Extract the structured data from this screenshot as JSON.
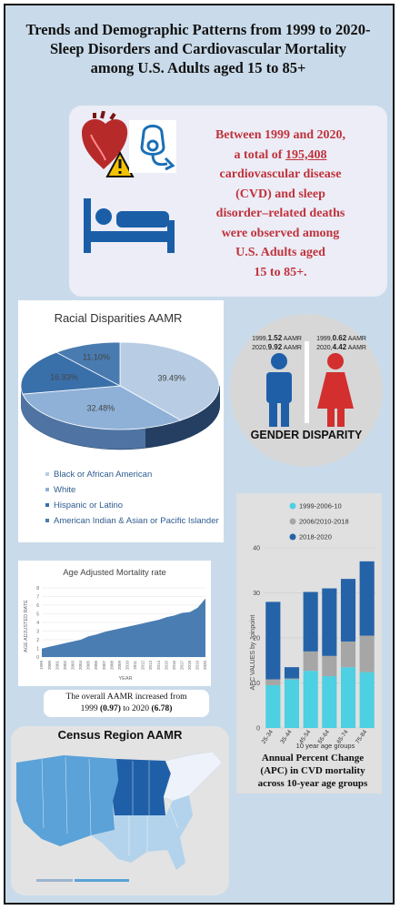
{
  "title_lines": [
    "Trends and Demographic Patterns from 1999 to 2020-",
    "Sleep Disorders and Cardiovascular Mortality",
    "among U.S. Adults aged 15 to 85+"
  ],
  "intro": {
    "line1": "Between 1999 and 2020,",
    "line2_pre": "a total of ",
    "line2_num": "195,408",
    "line3": "cardiovascular disease",
    "line4": "(CVD) and sleep",
    "line5": "disorder–related deaths",
    "line6": "were observed among",
    "line7": "U.S. Adults aged",
    "line8": "15 to 85+."
  },
  "race": {
    "title": "Racial Disparities AAMR",
    "labels": [
      "39.49%",
      "32.48%",
      "16.93%",
      "11.10%"
    ],
    "legend": [
      "Black or African American",
      "White",
      "Hispanic or Latino",
      "American Indian & Asian or Pacific Islander"
    ],
    "colors": [
      "#b8cde4",
      "#8fb1d8",
      "#3a70aa",
      "#4a7bb0"
    ]
  },
  "gender": {
    "title": "GENDER DISPARITY",
    "male": {
      "y1999": "1999,",
      "v1999": "1.52",
      "y2020": "2020,",
      "v2020": "9.92",
      "unit": "AAMR"
    },
    "female": {
      "y1999": "1999,",
      "v1999": "0.62",
      "y2020": "2020,",
      "v2020": "4.42",
      "unit": "AAMR"
    },
    "male_color": "#1f5fa8",
    "female_color": "#d32f2f"
  },
  "age": {
    "title": "Age Adjusted Mortality rate",
    "ylabel": "AGE ADJUSTED RATE",
    "xlabel": "YEAR",
    "caption_line1": "The overall AAMR increased from",
    "caption_pre": "1999 ",
    "caption_v1": "(0.97)",
    "caption_mid": " to 2020 ",
    "caption_v2": "(6.78)"
  },
  "chart_data": [
    {
      "type": "area",
      "title": "Age Adjusted Mortality rate",
      "xlabel": "YEAR",
      "ylabel": "AGE ADJUSTED RATE",
      "x": [
        1999,
        2000,
        2001,
        2002,
        2003,
        2004,
        2005,
        2006,
        2007,
        2008,
        2009,
        2010,
        2011,
        2012,
        2013,
        2014,
        2015,
        2016,
        2017,
        2018,
        2019,
        2020
      ],
      "values": [
        0.97,
        1.2,
        1.4,
        1.6,
        1.8,
        2.0,
        2.4,
        2.6,
        2.9,
        3.1,
        3.3,
        3.5,
        3.7,
        3.9,
        4.1,
        4.3,
        4.6,
        4.8,
        5.1,
        5.2,
        5.7,
        6.78
      ],
      "ylim": [
        0,
        8
      ],
      "yticks": [
        "0",
        "1",
        "2",
        "3",
        "4",
        "5",
        "6",
        "7",
        "8"
      ]
    },
    {
      "type": "bar",
      "stacked": true,
      "ylabel": "APC VALUES by Joinpoint",
      "xlabel": "10 year age groups",
      "categories": [
        "25-34",
        "35-44",
        "45-54",
        "55-64",
        "65-74",
        "75-84"
      ],
      "ylim": [
        0,
        40
      ],
      "yticks": [
        "0",
        "10",
        "20",
        "30",
        "40"
      ],
      "series": [
        {
          "name": "1999-2006-10",
          "values": [
            9.5,
            10.8,
            12.7,
            11.5,
            13.5,
            12.4
          ],
          "color": "#4dd0e1"
        },
        {
          "name": "2006/2010-2018",
          "values": [
            1.3,
            0.2,
            4.3,
            4.5,
            5.7,
            8.1
          ],
          "color": "#a6a6a6"
        },
        {
          "name": "2018-2020",
          "values": [
            17.2,
            2.5,
            13.2,
            15.0,
            13.9,
            16.5
          ],
          "color": "#2563a8"
        }
      ]
    }
  ],
  "apc_caption": [
    "Annual Percent Change",
    "(APC) in CVD mortality",
    "across 10-year age groups"
  ],
  "census": {
    "title": "Census Region AAMR"
  }
}
